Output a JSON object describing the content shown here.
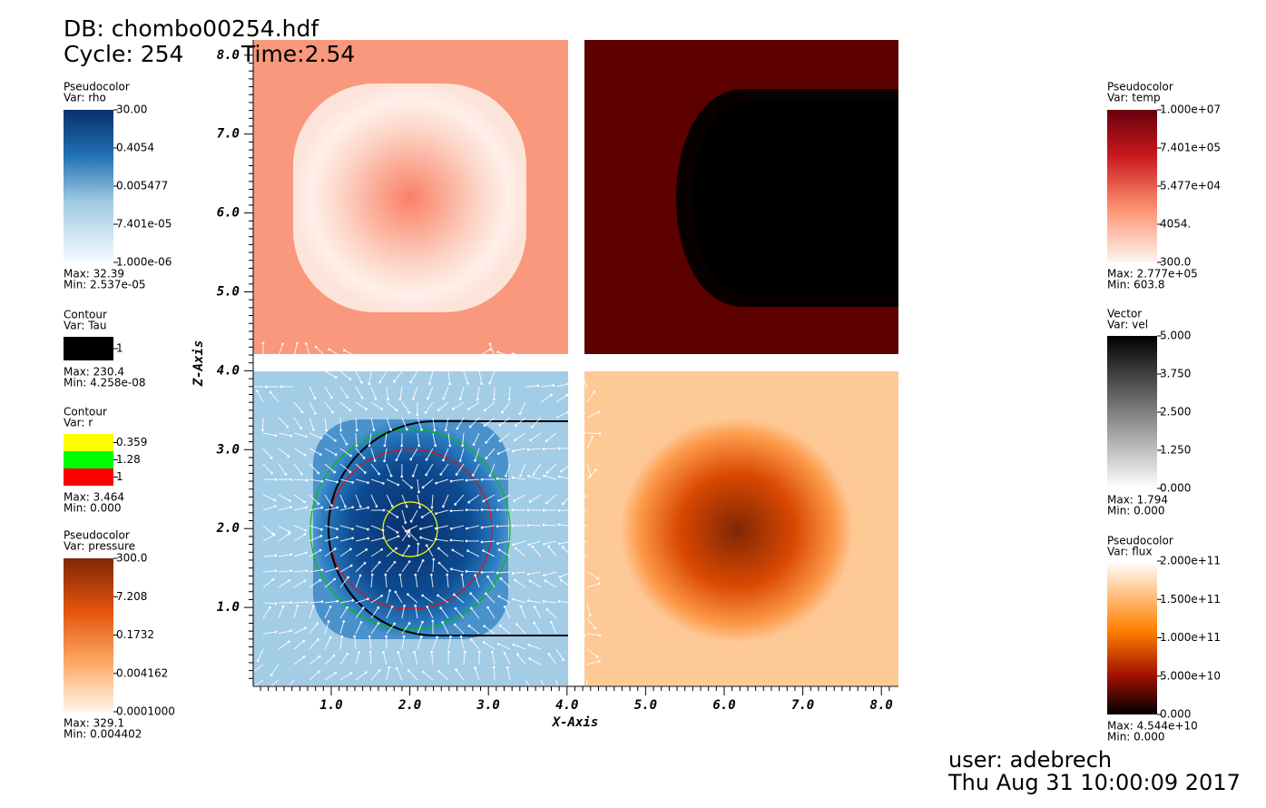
{
  "header": {
    "db": "DB: chombo00254.hdf",
    "cycle": "Cycle: 254",
    "time": "Time:2.54"
  },
  "legends_left": [
    {
      "plot": "Pseudocolor",
      "var": "Var: rho",
      "ticks": [
        "30.00",
        "0.4054",
        "0.005477",
        "7.401e-05",
        "1.000e-06"
      ],
      "max": "Max:  32.39",
      "min": "Min:  2.537e-05"
    },
    {
      "plot": "Contour",
      "var": "Var: Tau",
      "levels": [
        {
          "label": "1",
          "color": "#000000"
        }
      ],
      "max": "Max:  230.4",
      "min": "Min:  4.258e-08"
    },
    {
      "plot": "Contour",
      "var": "Var: r",
      "levels": [
        {
          "label": "0.359",
          "color": "#ffff00"
        },
        {
          "label": "1.28",
          "color": "#00ff00"
        },
        {
          "label": "1",
          "color": "#ff0000"
        }
      ],
      "max": "Max:  3.464",
      "min": "Min:  0.000"
    },
    {
      "plot": "Pseudocolor",
      "var": "Var: pressure",
      "ticks": [
        "300.0",
        "7.208",
        "0.1732",
        "0.004162",
        "0.0001000"
      ],
      "max": "Max:  329.1",
      "min": "Min:  0.004402"
    }
  ],
  "legends_right": [
    {
      "plot": "Pseudocolor",
      "var": "Var: temp",
      "ticks": [
        "1.000e+07",
        "7.401e+05",
        "5.477e+04",
        "4054.",
        "300.0"
      ],
      "max": "Max:  2.777e+05",
      "min": "Min:  603.8"
    },
    {
      "plot": "Vector",
      "var": "Var: vel",
      "ticks": [
        "5.000",
        "3.750",
        "2.500",
        "1.250",
        "0.000"
      ],
      "max": "Max:  1.794",
      "min": "Min:  0.000"
    },
    {
      "plot": "Pseudocolor",
      "var": "Var: flux",
      "ticks": [
        "2.000e+11",
        "1.500e+11",
        "1.000e+11",
        "5.000e+10",
        "0.000"
      ],
      "max": "Max:  4.544e+10",
      "min": "Min:  0.000"
    }
  ],
  "axes": {
    "x_label": "X-Axis",
    "z_label": "Z-Axis",
    "x_ticks": [
      "1.0",
      "2.0",
      "3.0",
      "4.0",
      "5.0",
      "6.0",
      "7.0",
      "8.0"
    ],
    "z_ticks": [
      "1.0",
      "2.0",
      "3.0",
      "4.0",
      "5.0",
      "6.0",
      "7.0",
      "8.0"
    ]
  },
  "footer": {
    "user": "user: adebrech",
    "date": "Thu Aug 31 10:00:09 2017"
  }
}
